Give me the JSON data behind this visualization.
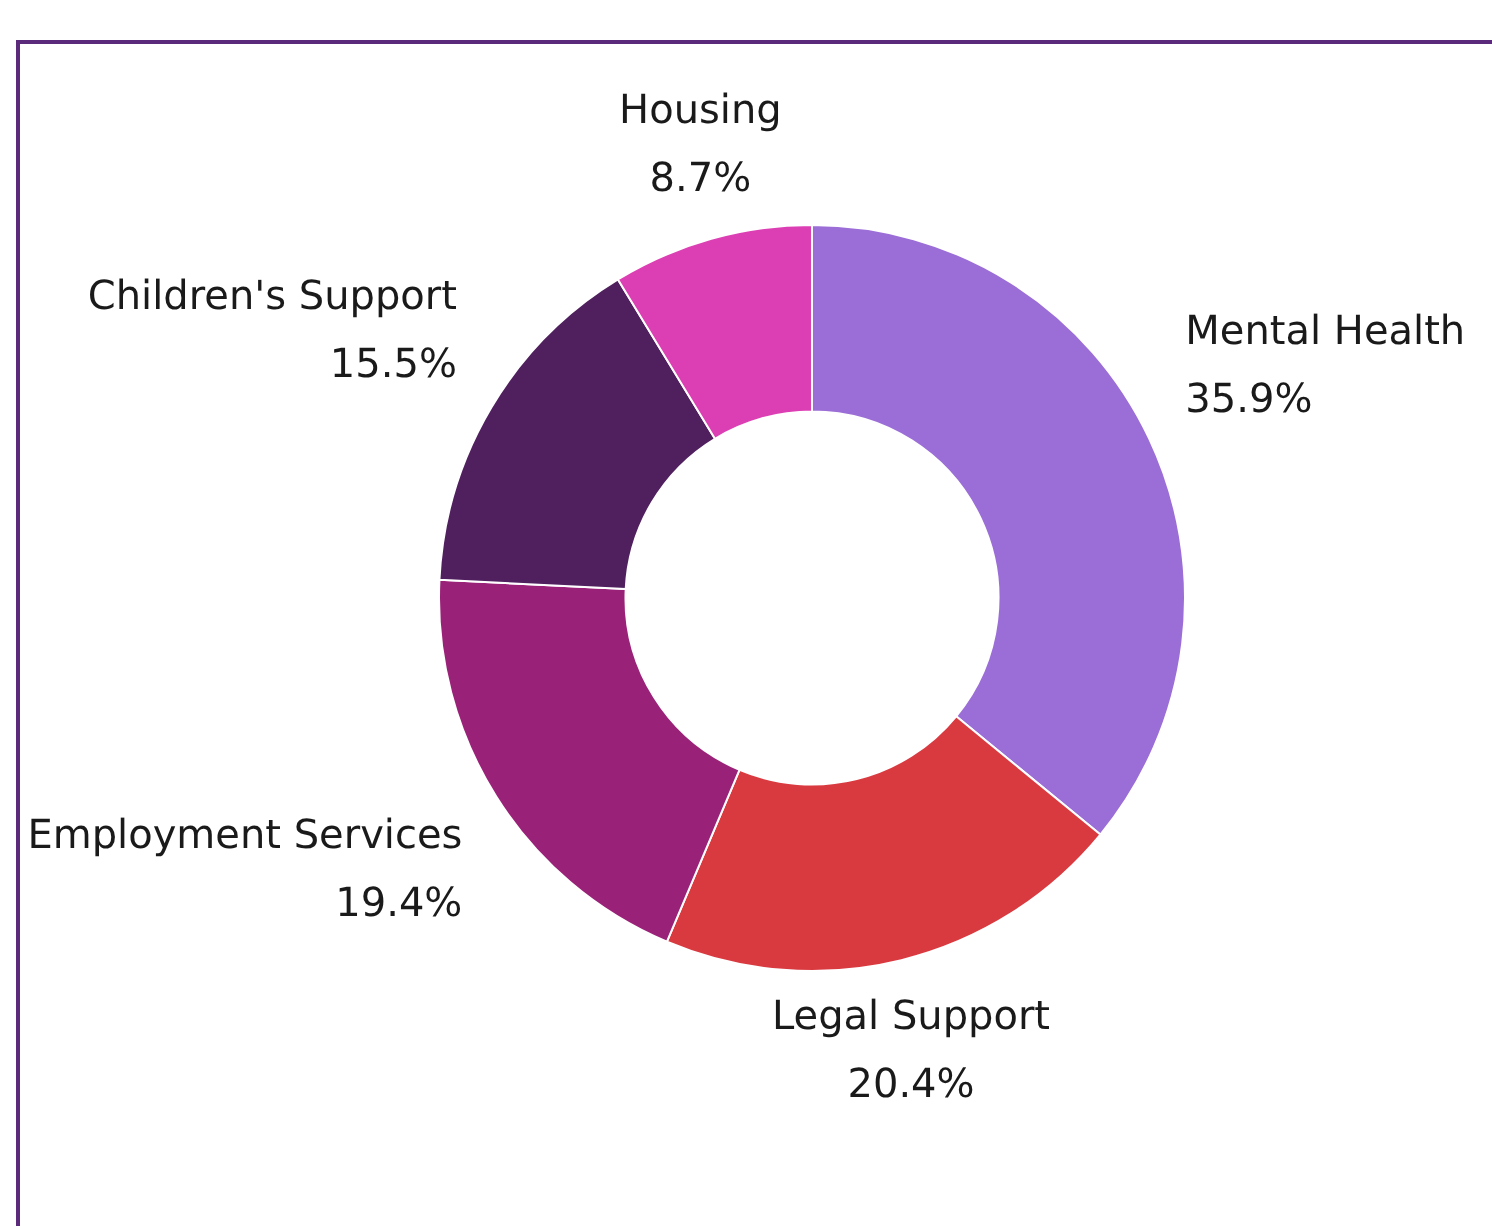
{
  "chart_data": {
    "type": "donut",
    "categories": [
      "Mental Health",
      "Legal Support",
      "Employment Services",
      "Children's Support",
      "Housing"
    ],
    "values": [
      35.9,
      20.4,
      19.4,
      15.5,
      8.7
    ],
    "colors": [
      "#9b6dd6",
      "#d93a40",
      "#9a2178",
      "#4f1f5e",
      "#dc3fb3"
    ],
    "value_labels": [
      "35.9%",
      "20.4%",
      "19.4%",
      "15.5%",
      "8.7%"
    ],
    "legend": false
  }
}
